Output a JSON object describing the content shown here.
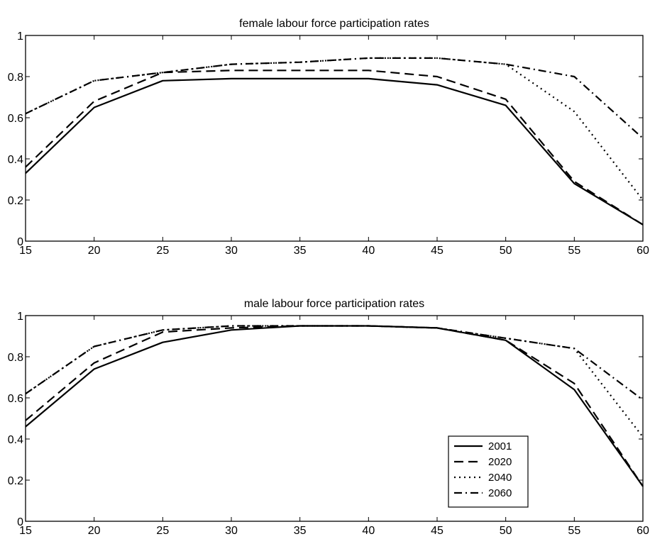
{
  "chart_data": [
    {
      "type": "line",
      "title": "female labour force participation rates",
      "xlabel": "",
      "ylabel": "",
      "xlim": [
        15,
        60
      ],
      "ylim": [
        0,
        1
      ],
      "xticks": [
        "15",
        "20",
        "25",
        "30",
        "35",
        "40",
        "45",
        "50",
        "55",
        "60"
      ],
      "yticks": [
        "0",
        "0.2",
        "0.4",
        "0.6",
        "0.8",
        "1"
      ],
      "grid": false,
      "x": [
        15,
        20,
        25,
        30,
        35,
        40,
        45,
        50,
        55,
        60
      ],
      "series": [
        {
          "name": "2001",
          "style": "solid",
          "values": [
            0.33,
            0.65,
            0.78,
            0.79,
            0.79,
            0.79,
            0.76,
            0.66,
            0.28,
            0.08
          ]
        },
        {
          "name": "2020",
          "style": "dashed",
          "values": [
            0.36,
            0.68,
            0.82,
            0.83,
            0.83,
            0.83,
            0.8,
            0.69,
            0.29,
            0.08
          ]
        },
        {
          "name": "2040",
          "style": "dotted",
          "values": [
            0.62,
            0.78,
            0.82,
            0.86,
            0.87,
            0.89,
            0.89,
            0.86,
            0.63,
            0.2
          ]
        },
        {
          "name": "2060",
          "style": "dashdot",
          "values": [
            0.62,
            0.78,
            0.82,
            0.86,
            0.87,
            0.89,
            0.89,
            0.86,
            0.8,
            0.5
          ]
        }
      ]
    },
    {
      "type": "line",
      "title": "male labour force participation rates",
      "xlabel": "",
      "ylabel": "",
      "xlim": [
        15,
        60
      ],
      "ylim": [
        0,
        1
      ],
      "xticks": [
        "15",
        "20",
        "25",
        "30",
        "35",
        "40",
        "45",
        "50",
        "55",
        "60"
      ],
      "yticks": [
        "0",
        "0.2",
        "0.4",
        "0.6",
        "0.8",
        "1"
      ],
      "grid": false,
      "legend": "bottom-right",
      "x": [
        15,
        20,
        25,
        30,
        35,
        40,
        45,
        50,
        55,
        60
      ],
      "series": [
        {
          "name": "2001",
          "style": "solid",
          "values": [
            0.46,
            0.74,
            0.87,
            0.93,
            0.95,
            0.95,
            0.94,
            0.88,
            0.64,
            0.17
          ]
        },
        {
          "name": "2020",
          "style": "dashed",
          "values": [
            0.49,
            0.77,
            0.92,
            0.94,
            0.95,
            0.95,
            0.94,
            0.88,
            0.67,
            0.17
          ]
        },
        {
          "name": "2040",
          "style": "dotted",
          "values": [
            0.62,
            0.85,
            0.93,
            0.95,
            0.95,
            0.95,
            0.94,
            0.89,
            0.84,
            0.41
          ]
        },
        {
          "name": "2060",
          "style": "dashdot",
          "values": [
            0.62,
            0.85,
            0.93,
            0.95,
            0.95,
            0.95,
            0.94,
            0.89,
            0.84,
            0.59
          ]
        }
      ]
    }
  ]
}
